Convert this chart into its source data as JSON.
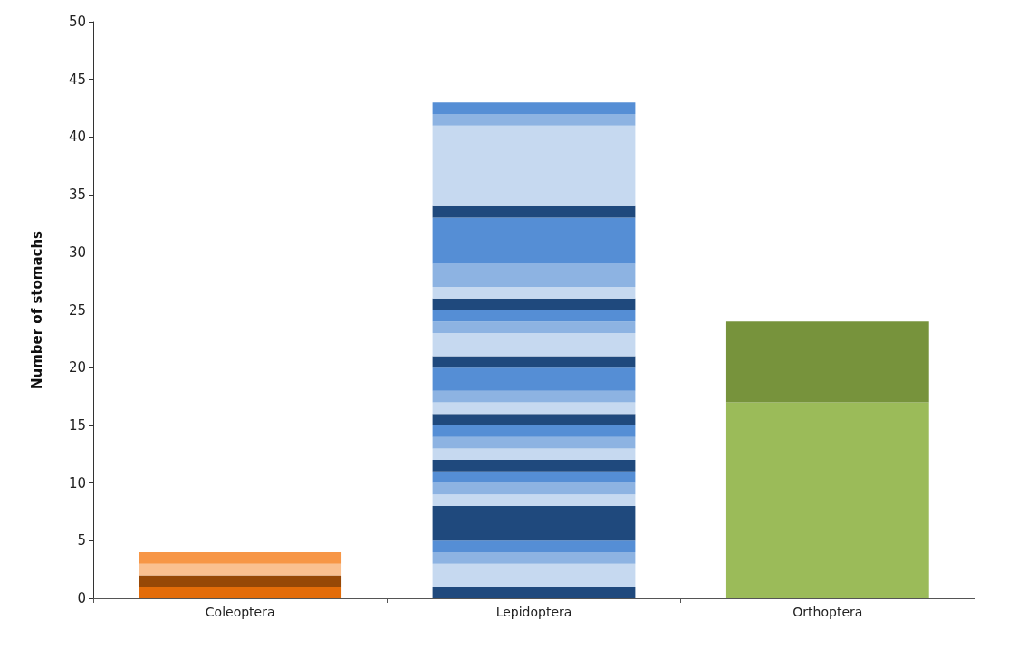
{
  "chart_data": {
    "type": "bar",
    "stacked": true,
    "ylabel": "Number of stomachs",
    "categories": [
      "Coleoptera",
      "Lepidoptera",
      "Orthoptera"
    ],
    "ylim": [
      0,
      50
    ],
    "yticks": [
      0,
      5,
      10,
      15,
      20,
      25,
      30,
      35,
      40,
      45,
      50
    ],
    "grid": false,
    "series": [
      {
        "values": [
          1,
          1,
          17
        ],
        "colors": [
          "#e36c09",
          "#1f497d",
          "#9bbb59"
        ]
      },
      {
        "values": [
          1,
          2,
          7
        ],
        "colors": [
          "#974806",
          "#c6d9f0",
          "#77933c"
        ]
      },
      {
        "values": [
          1,
          1,
          null
        ],
        "colors": [
          "#fac090",
          "#8db3e2",
          null
        ]
      },
      {
        "values": [
          1,
          1,
          null
        ],
        "colors": [
          "#f79646",
          "#558ed5",
          null
        ]
      },
      {
        "values": [
          null,
          3,
          null
        ],
        "colors": [
          null,
          "#1f497d",
          null
        ]
      },
      {
        "values": [
          null,
          1,
          null
        ],
        "colors": [
          null,
          "#c6d9f0",
          null
        ]
      },
      {
        "values": [
          null,
          1,
          null
        ],
        "colors": [
          null,
          "#8db3e2",
          null
        ]
      },
      {
        "values": [
          null,
          1,
          null
        ],
        "colors": [
          null,
          "#558ed5",
          null
        ]
      },
      {
        "values": [
          null,
          1,
          null
        ],
        "colors": [
          null,
          "#1f497d",
          null
        ]
      },
      {
        "values": [
          null,
          1,
          null
        ],
        "colors": [
          null,
          "#c6d9f0",
          null
        ]
      },
      {
        "values": [
          null,
          1,
          null
        ],
        "colors": [
          null,
          "#8db3e2",
          null
        ]
      },
      {
        "values": [
          null,
          1,
          null
        ],
        "colors": [
          null,
          "#558ed5",
          null
        ]
      },
      {
        "values": [
          null,
          1,
          null
        ],
        "colors": [
          null,
          "#1f497d",
          null
        ]
      },
      {
        "values": [
          null,
          1,
          null
        ],
        "colors": [
          null,
          "#c6d9f0",
          null
        ]
      },
      {
        "values": [
          null,
          1,
          null
        ],
        "colors": [
          null,
          "#8db3e2",
          null
        ]
      },
      {
        "values": [
          null,
          2,
          null
        ],
        "colors": [
          null,
          "#558ed5",
          null
        ]
      },
      {
        "values": [
          null,
          1,
          null
        ],
        "colors": [
          null,
          "#1f497d",
          null
        ]
      },
      {
        "values": [
          null,
          2,
          null
        ],
        "colors": [
          null,
          "#c6d9f0",
          null
        ]
      },
      {
        "values": [
          null,
          1,
          null
        ],
        "colors": [
          null,
          "#8db3e2",
          null
        ]
      },
      {
        "values": [
          null,
          1,
          null
        ],
        "colors": [
          null,
          "#558ed5",
          null
        ]
      },
      {
        "values": [
          null,
          1,
          null
        ],
        "colors": [
          null,
          "#1f497d",
          null
        ]
      },
      {
        "values": [
          null,
          1,
          null
        ],
        "colors": [
          null,
          "#c6d9f0",
          null
        ]
      },
      {
        "values": [
          null,
          2,
          null
        ],
        "colors": [
          null,
          "#8db3e2",
          null
        ]
      },
      {
        "values": [
          null,
          4,
          null
        ],
        "colors": [
          null,
          "#558ed5",
          null
        ]
      },
      {
        "values": [
          null,
          1,
          null
        ],
        "colors": [
          null,
          "#1f497d",
          null
        ]
      },
      {
        "values": [
          null,
          7,
          null
        ],
        "colors": [
          null,
          "#c6d9f0",
          null
        ]
      },
      {
        "values": [
          null,
          1,
          null
        ],
        "colors": [
          null,
          "#8db3e2",
          null
        ]
      },
      {
        "values": [
          null,
          1,
          null
        ],
        "colors": [
          null,
          "#558ed5",
          null
        ]
      }
    ]
  }
}
